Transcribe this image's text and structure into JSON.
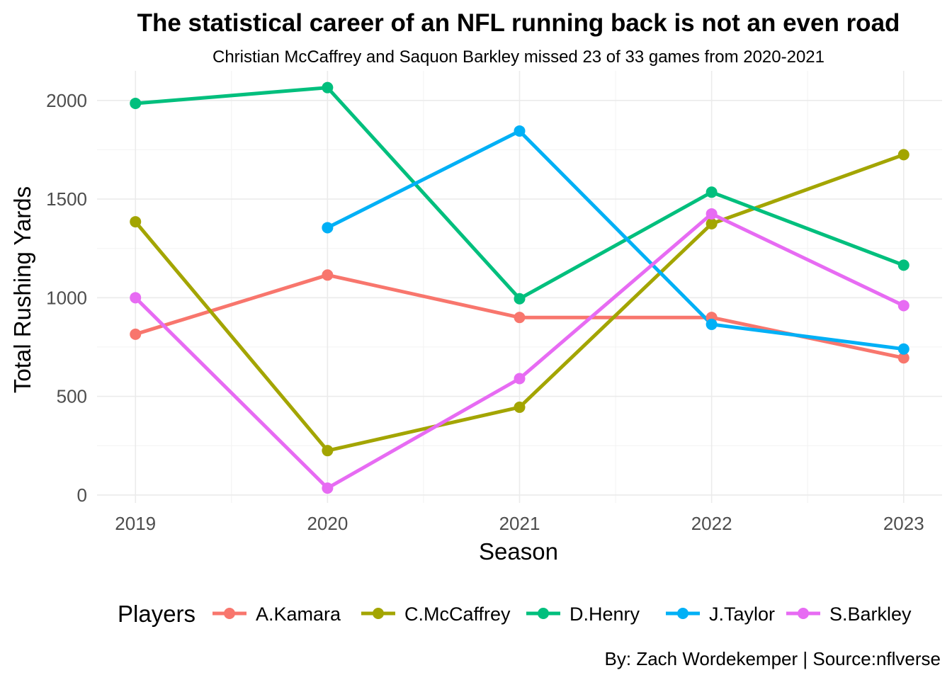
{
  "chart_data": {
    "type": "line",
    "title": "The statistical career of an NFL running back is not an even road",
    "subtitle": "Christian McCaffrey and Saquon Barkley missed 23 of 33 games from 2020-2021",
    "xlabel": "Season",
    "ylabel": "Total Rushing Yards",
    "x": [
      2019,
      2020,
      2021,
      2022,
      2023
    ],
    "x_ticks": [
      "2019",
      "2020",
      "2021",
      "2022",
      "2023"
    ],
    "y_ticks": [
      "0",
      "500",
      "1000",
      "1500",
      "2000"
    ],
    "ylim": [
      -40,
      2150
    ],
    "grid": true,
    "legend": {
      "title": "Players",
      "position": "bottom"
    },
    "caption": "By: Zach Wordekemper | Source:nflverse",
    "series": [
      {
        "name": "A.Kamara",
        "color": "#F8766D",
        "x": [
          2019,
          2020,
          2021,
          2022,
          2023
        ],
        "values": [
          815,
          1115,
          900,
          900,
          695
        ]
      },
      {
        "name": "C.McCaffrey",
        "color": "#A3A500",
        "x": [
          2019,
          2020,
          2021,
          2022,
          2023
        ],
        "values": [
          1385,
          225,
          445,
          1375,
          1725
        ]
      },
      {
        "name": "D.Henry",
        "color": "#00BF7D",
        "x": [
          2019,
          2020,
          2021,
          2022,
          2023
        ],
        "values": [
          1985,
          2065,
          995,
          1535,
          1165
        ]
      },
      {
        "name": "J.Taylor",
        "color": "#00B0F6",
        "x": [
          2020,
          2021,
          2022,
          2023
        ],
        "values": [
          1355,
          1845,
          865,
          740
        ]
      },
      {
        "name": "S.Barkley",
        "color": "#E76BF3",
        "x": [
          2019,
          2020,
          2021,
          2022,
          2023
        ],
        "values": [
          1000,
          35,
          590,
          1425,
          960
        ]
      }
    ]
  }
}
